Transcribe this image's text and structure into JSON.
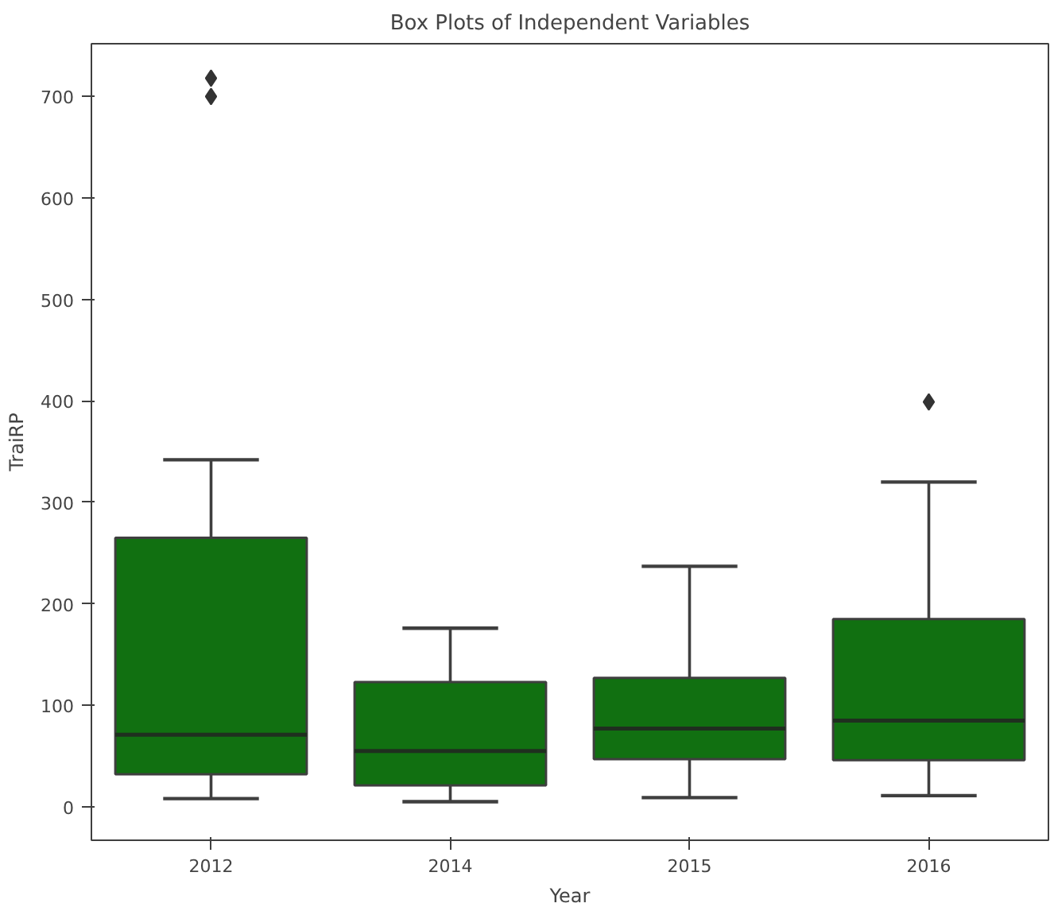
{
  "chart_data": {
    "type": "box",
    "title": "Box Plots of Independent Variables",
    "xlabel": "Year",
    "ylabel": "TraiRP",
    "categories": [
      "2012",
      "2014",
      "2015",
      "2016"
    ],
    "series": [
      {
        "color": "#117011",
        "boxes": [
          {
            "low": 8,
            "q1": 32,
            "median": 71,
            "q3": 265,
            "high": 342,
            "outliers": [
              700,
              718
            ]
          },
          {
            "low": 5,
            "q1": 21,
            "median": 55,
            "q3": 123,
            "high": 176
          },
          {
            "low": 9,
            "q1": 47,
            "median": 77,
            "q3": 127,
            "high": 237
          },
          {
            "low": 11,
            "q1": 46,
            "median": 85,
            "q3": 185,
            "high": 320,
            "outliers": [
              399
            ]
          }
        ]
      }
    ],
    "ylim": [
      -33,
      752
    ],
    "yticks": [
      0,
      100,
      200,
      300,
      400,
      500,
      600,
      700
    ],
    "grid": false,
    "marker": "diamond"
  }
}
